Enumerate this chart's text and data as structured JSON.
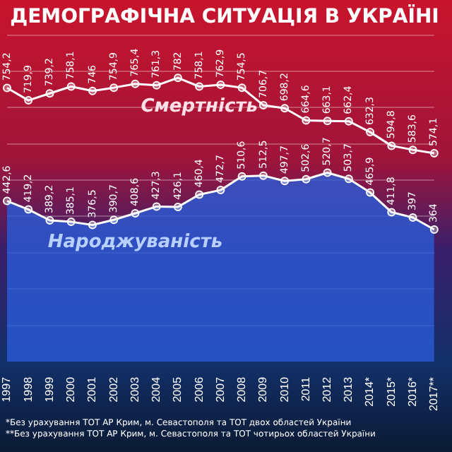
{
  "chart_data": {
    "type": "line",
    "title": "ДЕМОГРАФІЧНА СИТУАЦІЯ В УКРАЇНІ",
    "categories": [
      "1997",
      "1998",
      "1999",
      "2000",
      "2001",
      "2002",
      "2003",
      "2004",
      "2005",
      "2006",
      "2007",
      "2008",
      "2009",
      "2010",
      "2011",
      "2012",
      "2013",
      "2014*",
      "2015*",
      "2016*",
      "2017**"
    ],
    "series": [
      {
        "name": "Смертність",
        "type": "line",
        "color": "#ffffff",
        "values": [
          754.2,
          719.9,
          739.2,
          758.1,
          746,
          754.9,
          765.4,
          761.3,
          782,
          758.1,
          762.9,
          754.5,
          706.7,
          698.2,
          664.6,
          663.1,
          662.4,
          632.3,
          594.8,
          583.6,
          574.1
        ],
        "value_labels": [
          "754,2",
          "719,9",
          "739,2",
          "758,1",
          "746",
          "754,9",
          "765,4",
          "761,3",
          "782",
          "758,1",
          "762,9",
          "754,5",
          "706,7",
          "698,2",
          "664,6",
          "663,1",
          "662,4",
          "632,3",
          "594,8",
          "583,6",
          "574,1"
        ]
      },
      {
        "name": "Народжуваність",
        "type": "area",
        "color": "#2a5bd7",
        "values": [
          442.6,
          419.2,
          389.2,
          385.1,
          376.5,
          390.7,
          408.6,
          427.3,
          426.1,
          460.4,
          472.7,
          510.6,
          512.5,
          497.7,
          502.6,
          520.7,
          503.7,
          465.9,
          411.8,
          397,
          364
        ],
        "value_labels": [
          "442,6",
          "419,2",
          "389,2",
          "385,1",
          "376,5",
          "390,7",
          "408,6",
          "427,3",
          "426,1",
          "460,4",
          "472,7",
          "510,6",
          "512,5",
          "497,7",
          "502,6",
          "520,7",
          "503,7",
          "465,9",
          "411,8",
          "397",
          "364"
        ]
      }
    ],
    "ylim": [
      0,
      900
    ],
    "yticks": [
      {
        "value": 100,
        "label": null
      },
      {
        "value": 200,
        "label": null
      },
      {
        "value": 300,
        "label": null
      },
      {
        "value": 400,
        "label": null
      },
      {
        "value": 500,
        "label": null
      },
      {
        "value": 600,
        "label": null
      },
      {
        "value": 700,
        "label": null
      },
      {
        "value": 800,
        "label": null
      },
      {
        "value": 900,
        "label": null
      }
    ],
    "grid": "y",
    "tick_labels": "x",
    "marker": "circle",
    "annotations": [
      "*Без урахування ТОТ АР Крим, м. Севастополя та ТОТ двох областей України",
      "**Без урахування ТОТ АР Крим, м. Севастополя та ТОТ чотирьох областей України"
    ]
  }
}
